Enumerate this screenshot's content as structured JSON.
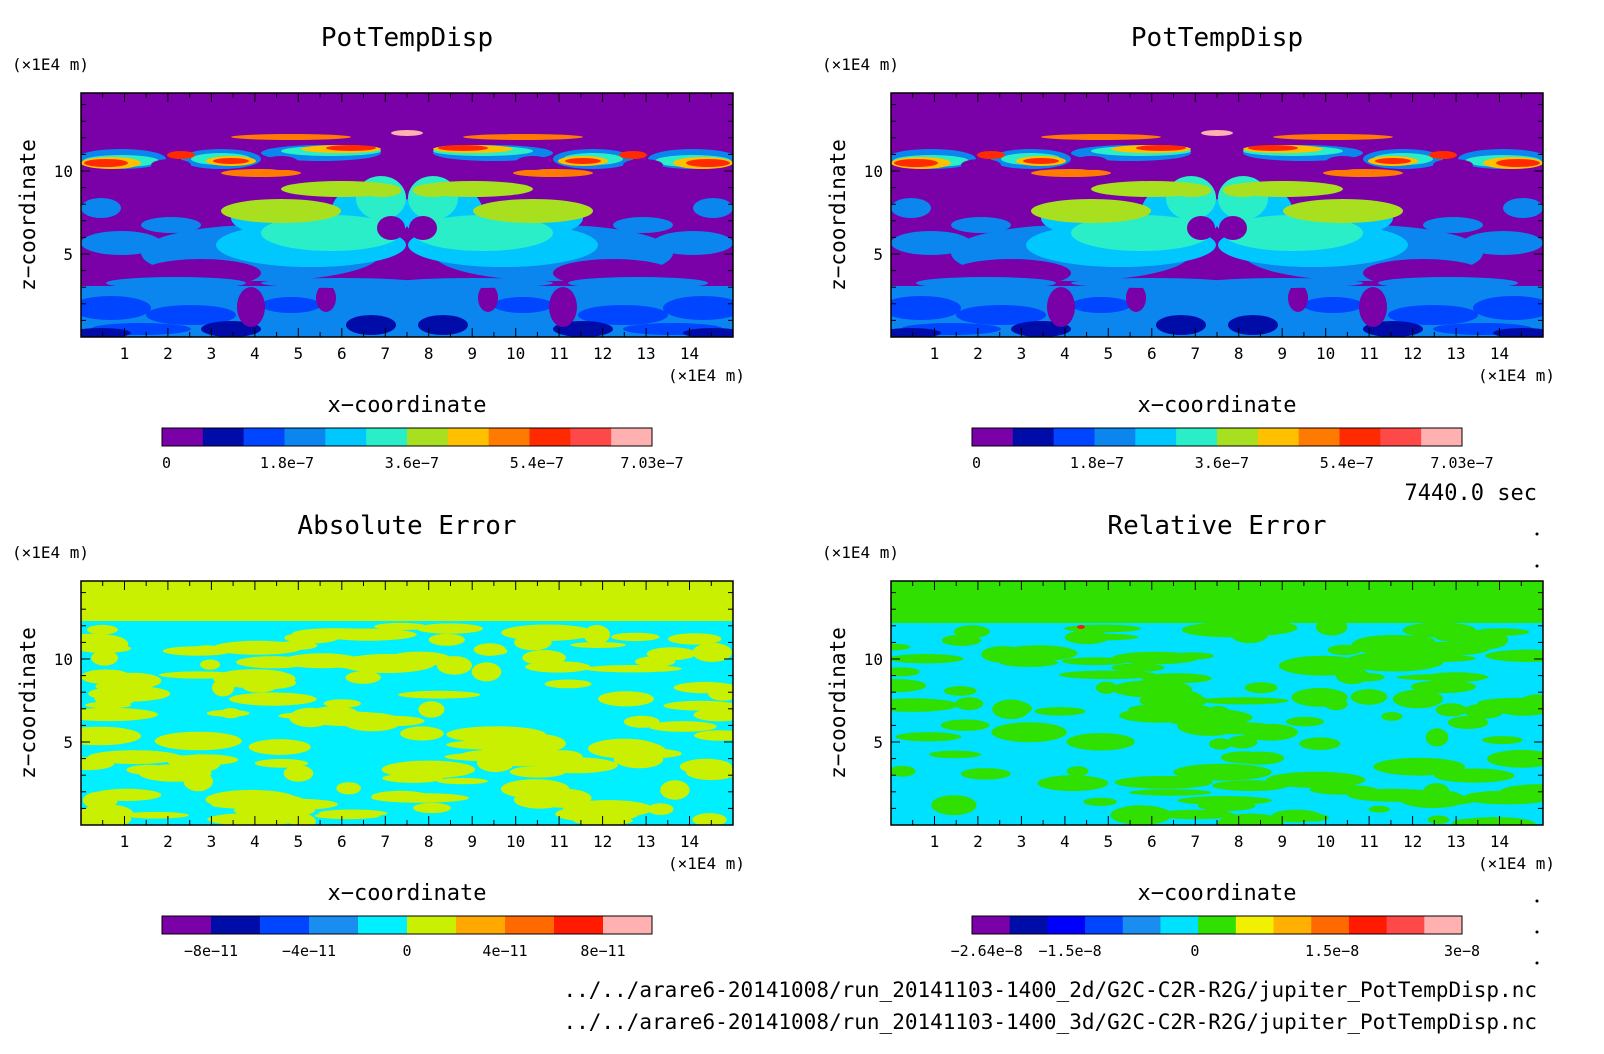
{
  "time_label": "7440.0 sec",
  "files": [
    "../../arare6-20141008/run_20141103-1400_2d/G2C-C2R-R2G/jupiter_PotTempDisp.nc",
    "../../arare6-20141008/run_20141103-1400_3d/G2C-C2R-R2G/jupiter_PotTempDisp.nc"
  ],
  "chart_data": [
    {
      "type": "heatmap",
      "title": "PotTempDisp",
      "xlabel": "x−coordinate",
      "ylabel": "z−coordinate",
      "x_unit": "(×1E4 m)",
      "y_unit": "(×1E4 m)",
      "xlim": [
        0,
        15
      ],
      "ylim": [
        0,
        14.7
      ],
      "x_ticks": [
        1,
        2,
        3,
        4,
        5,
        6,
        7,
        8,
        9,
        10,
        11,
        12,
        13,
        14
      ],
      "y_ticks": [
        5,
        10
      ],
      "colorbar": {
        "colors": [
          "#7a00a8",
          "#000ca8",
          "#0045ff",
          "#0a86ee",
          "#00c8ff",
          "#2aeec8",
          "#a8e020",
          "#ffc000",
          "#ff7a00",
          "#ff2a00",
          "#ff4848",
          "#ffb0b0"
        ],
        "tick_labels": [
          "0",
          "1.8e−7",
          "3.6e−7",
          "5.4e−7",
          "7.03e−7"
        ]
      }
    },
    {
      "type": "heatmap",
      "title": "PotTempDisp",
      "xlabel": "x−coordinate",
      "ylabel": "z−coordinate",
      "x_unit": "(×1E4 m)",
      "y_unit": "(×1E4 m)",
      "xlim": [
        0,
        15
      ],
      "ylim": [
        0,
        14.7
      ],
      "x_ticks": [
        1,
        2,
        3,
        4,
        5,
        6,
        7,
        8,
        9,
        10,
        11,
        12,
        13,
        14
      ],
      "y_ticks": [
        5,
        10
      ],
      "colorbar": {
        "colors": [
          "#7a00a8",
          "#000ca8",
          "#0045ff",
          "#0a86ee",
          "#00c8ff",
          "#2aeec8",
          "#a8e020",
          "#ffc000",
          "#ff7a00",
          "#ff2a00",
          "#ff4848",
          "#ffb0b0"
        ],
        "tick_labels": [
          "0",
          "1.8e−7",
          "3.6e−7",
          "5.4e−7",
          "7.03e−7"
        ]
      }
    },
    {
      "type": "heatmap",
      "title": "Absolute Error",
      "xlabel": "x−coordinate",
      "ylabel": "z−coordinate",
      "x_unit": "(×1E4 m)",
      "y_unit": "(×1E4 m)",
      "xlim": [
        0,
        15
      ],
      "ylim": [
        0,
        14.7
      ],
      "x_ticks": [
        1,
        2,
        3,
        4,
        5,
        6,
        7,
        8,
        9,
        10,
        11,
        12,
        13,
        14
      ],
      "y_ticks": [
        5,
        10
      ],
      "colorbar": {
        "colors": [
          "#7a00a8",
          "#000ca8",
          "#0045ff",
          "#1a8ef0",
          "#00f0ff",
          "#c8f000",
          "#ffa800",
          "#ff6a00",
          "#ff1a00",
          "#ffb0b0"
        ],
        "tick_labels": [
          "−8e−11",
          "−4e−11",
          "0",
          "4e−11",
          "8e−11"
        ]
      }
    },
    {
      "type": "heatmap",
      "title": "Relative Error",
      "xlabel": "x−coordinate",
      "ylabel": "z−coordinate",
      "x_unit": "(×1E4 m)",
      "y_unit": "(×1E4 m)",
      "xlim": [
        0,
        15
      ],
      "ylim": [
        0,
        14.7
      ],
      "x_ticks": [
        1,
        2,
        3,
        4,
        5,
        6,
        7,
        8,
        9,
        10,
        11,
        12,
        13,
        14
      ],
      "y_ticks": [
        5,
        10
      ],
      "colorbar": {
        "colors": [
          "#7a00a8",
          "#000ca8",
          "#0000ff",
          "#0045ff",
          "#1a8ef0",
          "#00e0ff",
          "#30e000",
          "#f0f000",
          "#ffb000",
          "#ff6a00",
          "#ff1a00",
          "#ff4848",
          "#ffb0b0"
        ],
        "tick_labels": [
          "−2.64e−8",
          "−1.5e−8",
          "0",
          "1.5e−8",
          "3e−8"
        ]
      }
    }
  ]
}
